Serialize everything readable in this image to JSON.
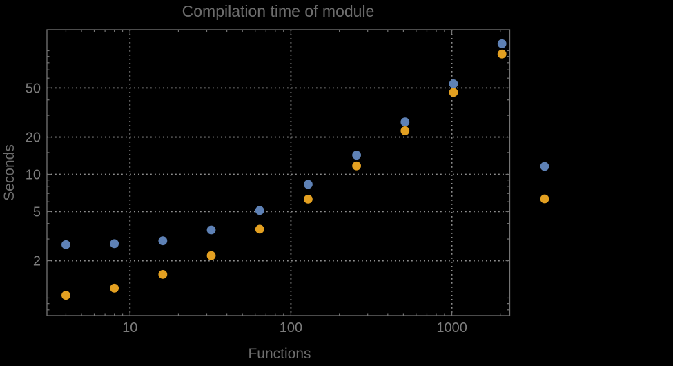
{
  "window": {
    "background_color": "#000000"
  },
  "chart_data": {
    "type": "scatter",
    "title": "Compilation time of module",
    "xlabel": "Functions",
    "ylabel": "Seconds",
    "xscale": "log",
    "yscale": "log",
    "xlim": [
      3.05,
      2290
    ],
    "ylim": [
      0.72,
      148
    ],
    "grid": "dotted",
    "legend_position": "outside-right",
    "x": [
      4,
      8,
      16,
      32,
      64,
      128,
      256,
      512,
      1024,
      2048
    ],
    "series": [
      {
        "name": "series-1-blue",
        "color": "#5E81B5",
        "values": [
          2.7,
          2.75,
          2.9,
          3.55,
          5.1,
          8.3,
          14.3,
          26.5,
          54,
          114
        ]
      },
      {
        "name": "series-2-orange",
        "color": "#E3A021",
        "values": [
          1.05,
          1.2,
          1.55,
          2.2,
          3.6,
          6.3,
          11.7,
          22.5,
          46,
          94
        ]
      }
    ],
    "x_ticks": {
      "values": [
        10,
        100,
        1000
      ],
      "labels": [
        "10",
        "100",
        "1000"
      ]
    },
    "y_ticks": {
      "values": [
        2,
        5,
        10,
        20,
        50
      ],
      "labels": [
        "2",
        "5",
        "10",
        "20",
        "50"
      ]
    },
    "x_minor_ticks": [
      4,
      5,
      6,
      7,
      8,
      9,
      20,
      30,
      40,
      50,
      60,
      70,
      80,
      90,
      200,
      300,
      400,
      500,
      600,
      700,
      800,
      900,
      2000
    ],
    "y_minor_ticks": [
      0.8,
      0.9,
      1,
      3,
      4,
      6,
      7,
      8,
      9,
      15,
      30,
      40,
      60,
      70,
      80,
      90,
      100
    ],
    "legend_markers": [
      {
        "name": "legend-marker-series-1",
        "color": "#5E81B5"
      },
      {
        "name": "legend-marker-series-2",
        "color": "#E3A021"
      }
    ],
    "colors": {
      "background": "#000000",
      "frame": "#747474",
      "grid": "#8F8F8F",
      "tick": "#747474",
      "title": "#6E6E6E",
      "axis_label": "#6E6E6E",
      "tick_label": "#7C7C7C"
    }
  }
}
